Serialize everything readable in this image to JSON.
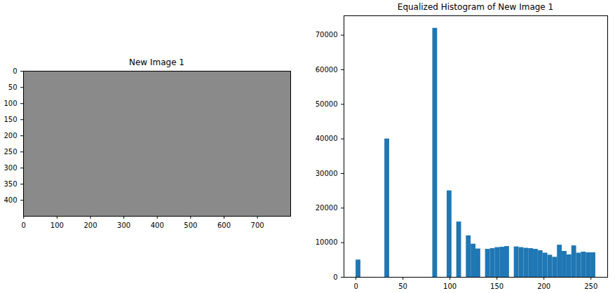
{
  "chart_data": [
    {
      "type": "image",
      "title": "New Image 1",
      "xlim": [
        -0.5,
        799.5
      ],
      "ylim": [
        449.5,
        -0.5
      ],
      "xticks": [
        0,
        100,
        200,
        300,
        400,
        500,
        600,
        700
      ],
      "yticks": [
        0,
        50,
        100,
        150,
        200,
        250,
        300,
        350,
        400
      ]
    },
    {
      "type": "histogram",
      "title": "Equalized Histogram of New Image 1",
      "bins": [
        0,
        5.1,
        10.2,
        15.3,
        20.4,
        25.5,
        30.6,
        35.7,
        40.8,
        45.9,
        51,
        56.1,
        61.2,
        66.3,
        71.4,
        76.5,
        81.6,
        86.7,
        91.8,
        96.9,
        102,
        107.1,
        112.2,
        117.3,
        122.4,
        127.5,
        132.6,
        137.7,
        142.8,
        147.9,
        153,
        158.1,
        163.2,
        168.3,
        173.4,
        178.5,
        183.6,
        188.7,
        193.8,
        198.9,
        204,
        209.1,
        214.2,
        219.3,
        224.4,
        229.5,
        234.6,
        239.7,
        244.8,
        249.9,
        255
      ],
      "values": [
        5000,
        0,
        0,
        0,
        0,
        0,
        40000,
        0,
        0,
        0,
        0,
        0,
        0,
        0,
        0,
        0,
        72000,
        0,
        0,
        25000,
        0,
        16000,
        0,
        12000,
        9600,
        8200,
        0,
        8100,
        8300,
        8600,
        8700,
        8900,
        0,
        8800,
        8600,
        8400,
        8300,
        8100,
        7700,
        7000,
        6400,
        5800,
        9300,
        7500,
        6500,
        9100,
        7000,
        7300,
        7100,
        7100
      ],
      "color": "#1f77b4",
      "xlim": [
        -12.75,
        267.75
      ],
      "ylim": [
        0,
        75600
      ],
      "xticks": [
        0,
        50,
        100,
        150,
        200,
        250
      ],
      "yticks": [
        0,
        10000,
        20000,
        30000,
        40000,
        50000,
        60000,
        70000
      ]
    }
  ]
}
